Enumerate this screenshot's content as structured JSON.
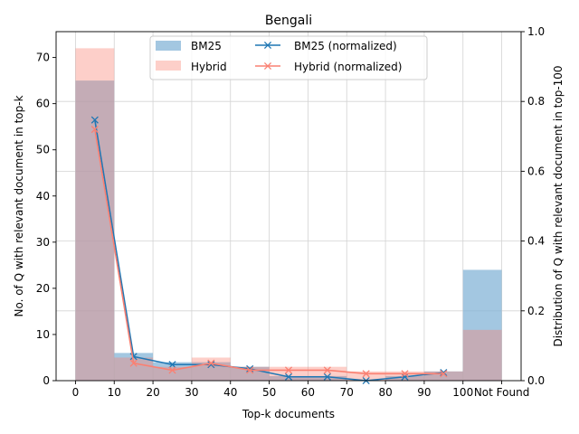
{
  "chart_data": {
    "type": "bar",
    "title": "Bengali",
    "xlabel": "Top-k documents",
    "ylabel": "No. of Q with relevant document in top-k",
    "y2label": "Distribution of Q with relevant document in top-100",
    "x_tick_labels": [
      "0",
      "10",
      "20",
      "30",
      "40",
      "50",
      "60",
      "70",
      "80",
      "90",
      "100",
      "Not Found"
    ],
    "x_tick_values": [
      0,
      10,
      20,
      30,
      40,
      50,
      60,
      70,
      80,
      90,
      100,
      110
    ],
    "xlim": [
      -5,
      115
    ],
    "ylim": [
      0,
      75.6
    ],
    "y_ticks": [
      0,
      10,
      20,
      30,
      40,
      50,
      60,
      70
    ],
    "y2lim": [
      0,
      1.0
    ],
    "y2_ticks": [
      0.0,
      0.2,
      0.4,
      0.6,
      0.8,
      1.0
    ],
    "y2_tick_labels": [
      "0.0",
      "0.2",
      "0.4",
      "0.6",
      "0.8",
      "1.0"
    ],
    "grid": true,
    "legend_position": "upper-center",
    "bins": [
      [
        0,
        10
      ],
      [
        10,
        20
      ],
      [
        20,
        30
      ],
      [
        30,
        40
      ],
      [
        40,
        50
      ],
      [
        50,
        60
      ],
      [
        60,
        70
      ],
      [
        70,
        80
      ],
      [
        80,
        90
      ],
      [
        90,
        100
      ],
      [
        100,
        110
      ]
    ],
    "bar_series": [
      {
        "name": "BM25",
        "color": "#7fb2d5",
        "opacity": 0.72,
        "values": [
          65,
          6,
          4,
          4,
          3,
          1,
          1,
          0,
          1,
          2,
          24
        ]
      },
      {
        "name": "Hybrid",
        "color": "#fa8072",
        "opacity": 0.38,
        "values": [
          72,
          5,
          3,
          5,
          3,
          3,
          3,
          2,
          2,
          2,
          11
        ]
      }
    ],
    "line_series": [
      {
        "name": "BM25 (normalized)",
        "color": "#1f77b4",
        "marker": "x",
        "x": [
          5,
          15,
          25,
          35,
          45,
          55,
          65,
          75,
          85,
          95
        ],
        "values": [
          0.747,
          0.069,
          0.046,
          0.046,
          0.034,
          0.011,
          0.011,
          0.0,
          0.011,
          0.023
        ]
      },
      {
        "name": "Hybrid (normalized)",
        "color": "#fa8072",
        "marker": "x",
        "x": [
          5,
          15,
          25,
          35,
          45,
          55,
          65,
          75,
          85,
          95
        ],
        "values": [
          0.72,
          0.05,
          0.03,
          0.05,
          0.03,
          0.03,
          0.03,
          0.02,
          0.02,
          0.02
        ]
      }
    ]
  }
}
